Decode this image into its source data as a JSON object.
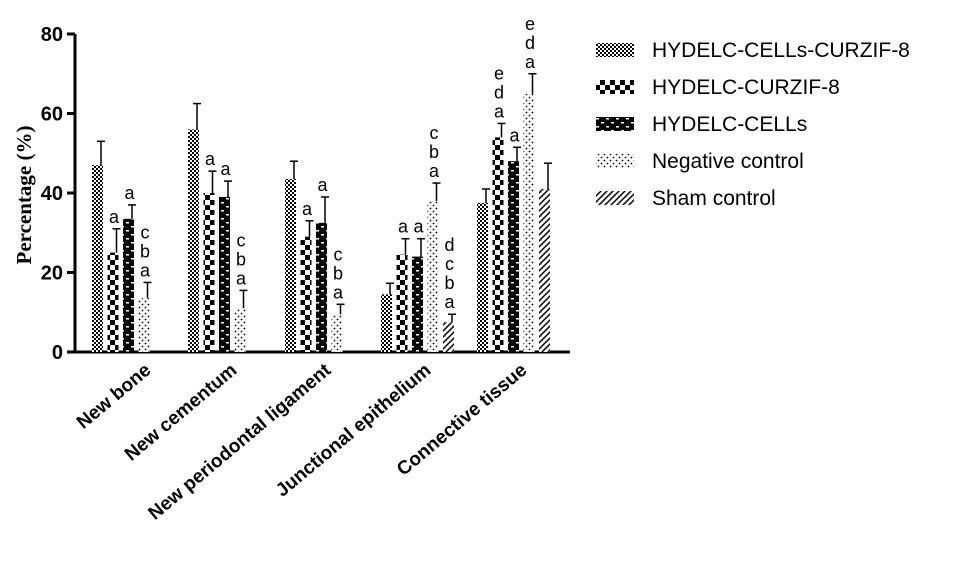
{
  "chart_data": {
    "type": "bar",
    "ylabel": "Percentage (%)",
    "xlabel": "",
    "ylim": [
      0,
      80
    ],
    "yticks": [
      "0",
      "20",
      "40",
      "60",
      "80"
    ],
    "grid": false,
    "legend_position": "top-right",
    "categories": [
      "New bone",
      "New cementum",
      "New periodontal ligament",
      "Junctional epithelium",
      "Connective tissue"
    ],
    "series": [
      {
        "name": "HYDELC-CELLs-CURZIF-8",
        "pattern": "checker-fine",
        "values": [
          47,
          56,
          43.5,
          14.5,
          37.5
        ],
        "errors": [
          6,
          6.5,
          4.5,
          2.8,
          3.5
        ],
        "letters": [
          "",
          "",
          "",
          "",
          ""
        ]
      },
      {
        "name": "HYDELC-CURZIF-8",
        "pattern": "checker-bold",
        "values": [
          25,
          40,
          29,
          24.5,
          54
        ],
        "errors": [
          6,
          5.5,
          4,
          4,
          3.5
        ],
        "letters": [
          "a",
          "a",
          "a",
          "a",
          "eda"
        ]
      },
      {
        "name": "HYDELC-CELLs",
        "pattern": "brick",
        "values": [
          33.5,
          39,
          32.5,
          24,
          48
        ],
        "errors": [
          3.5,
          4,
          6.5,
          4.5,
          3.5
        ],
        "letters": [
          "a",
          "a",
          "a",
          "a",
          "a"
        ]
      },
      {
        "name": "Negative control",
        "pattern": "dots",
        "values": [
          13.5,
          11,
          9.5,
          38,
          65
        ],
        "errors": [
          4,
          4.5,
          2.5,
          4.5,
          5
        ],
        "letters": [
          "cba",
          "cba",
          "cba",
          "cba",
          "eda"
        ]
      },
      {
        "name": "Sham control",
        "pattern": "diagonal",
        "values": [
          null,
          null,
          null,
          7.5,
          41
        ],
        "errors": [
          null,
          null,
          null,
          2,
          6.5
        ],
        "letters": [
          "",
          "",
          "",
          "dcba",
          ""
        ]
      }
    ]
  }
}
